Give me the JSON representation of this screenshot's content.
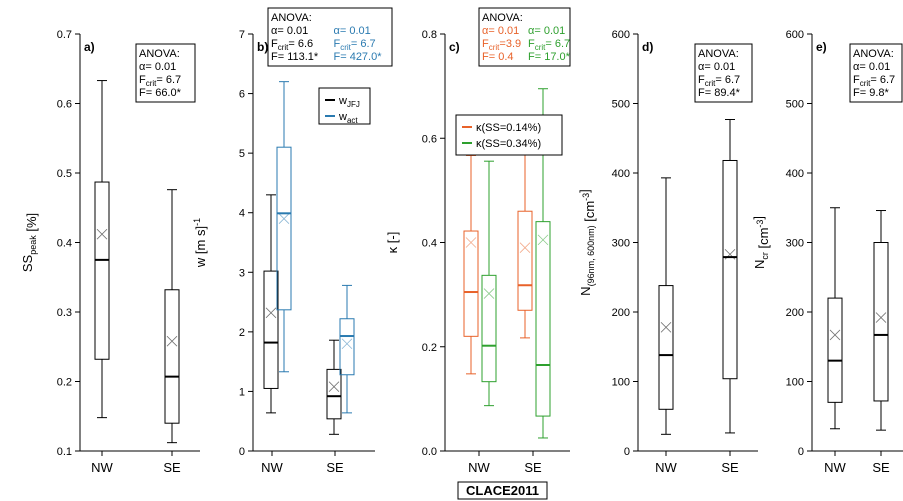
{
  "figure": {
    "campaign": "CLACE2011",
    "colors": {
      "black": "#000000",
      "blue": "#2a7ab0",
      "orange": "#e8622a",
      "green": "#2ea02e"
    }
  },
  "chart_data": [
    {
      "type": "box",
      "panel_label": "a)",
      "title": "",
      "xlabel": "",
      "ylabel": "SS",
      "ylabel_sub": "peak",
      "ylabel_unit": " [%]",
      "ylim": [
        0.1,
        0.7
      ],
      "yticks": [
        0.1,
        0.2,
        0.3,
        0.4,
        0.5,
        0.6,
        0.7
      ],
      "categories": [
        "NW",
        "SE"
      ],
      "boxes": [
        {
          "category": "NW",
          "color": "black",
          "min": 0.148,
          "q1": 0.232,
          "median": 0.375,
          "q3": 0.487,
          "max": 0.633,
          "mean": 0.412
        },
        {
          "category": "SE",
          "color": "black",
          "min": 0.112,
          "q1": 0.14,
          "median": 0.207,
          "q3": 0.332,
          "max": 0.476,
          "mean": 0.258
        }
      ],
      "anova": {
        "header": "ANOVA:",
        "lines": [
          [
            {
              "text": "α= 0.01",
              "color": "black"
            }
          ],
          [
            {
              "text": "F",
              "sub": "crit",
              "post": "= 6.7",
              "color": "black"
            }
          ],
          [
            {
              "text": "F= 66.0*",
              "color": "black"
            }
          ]
        ]
      }
    },
    {
      "type": "box",
      "panel_label": "b)",
      "title": "",
      "xlabel": "",
      "ylabel": "w [m s",
      "ylabel_sup": "-1",
      "ylabel_unit": "]",
      "ylim": [
        0,
        7
      ],
      "yticks": [
        0,
        1,
        2,
        3,
        4,
        5,
        6,
        7
      ],
      "categories": [
        "NW",
        "SE"
      ],
      "series": [
        {
          "name": "w",
          "sub": "JFJ",
          "color": "black"
        },
        {
          "name": "w",
          "sub": "act",
          "color": "blue"
        }
      ],
      "boxes": [
        {
          "category": "NW",
          "series": 0,
          "color": "black",
          "min": 0.64,
          "q1": 1.05,
          "median": 1.82,
          "q3": 3.02,
          "max": 4.3,
          "mean": 2.32
        },
        {
          "category": "NW",
          "series": 1,
          "color": "blue",
          "min": 1.33,
          "q1": 2.37,
          "median": 3.99,
          "q3": 5.1,
          "max": 6.2,
          "mean": 3.9
        },
        {
          "category": "SE",
          "series": 0,
          "color": "black",
          "min": 0.28,
          "q1": 0.54,
          "median": 0.92,
          "q3": 1.37,
          "max": 1.86,
          "mean": 1.08
        },
        {
          "category": "SE",
          "series": 1,
          "color": "blue",
          "min": 0.64,
          "q1": 1.28,
          "median": 1.93,
          "q3": 2.22,
          "max": 2.78,
          "mean": 1.8
        }
      ],
      "anova": {
        "header": "ANOVA:",
        "lines": [
          [
            {
              "text": "α= 0.01",
              "color": "black"
            },
            {
              "text": "α= 0.01",
              "color": "blue"
            }
          ],
          [
            {
              "text": "F",
              "sub": "crit",
              "post": "= 6.6",
              "color": "black"
            },
            {
              "text": "F",
              "sub": "crit",
              "post": "= 6.7",
              "color": "blue"
            }
          ],
          [
            {
              "text": "F= 113.1*",
              "color": "black"
            },
            {
              "text": "F= 427.0*",
              "color": "blue"
            }
          ]
        ]
      }
    },
    {
      "type": "box",
      "panel_label": "c)",
      "title": "",
      "xlabel": "",
      "ylabel": "κ [-]",
      "ylim": [
        0,
        0.8
      ],
      "yticks": [
        0.0,
        0.2,
        0.4,
        0.6,
        0.8
      ],
      "categories": [
        "NW",
        "SE"
      ],
      "series": [
        {
          "name": "κ(SS=0.14%)",
          "color": "orange"
        },
        {
          "name": "κ(SS=0.34%)",
          "color": "green"
        }
      ],
      "boxes": [
        {
          "category": "NW",
          "series": 0,
          "color": "orange",
          "min": 0.148,
          "q1": 0.22,
          "median": 0.305,
          "q3": 0.422,
          "max": 0.567,
          "mean": 0.4
        },
        {
          "category": "NW",
          "series": 1,
          "color": "green",
          "min": 0.087,
          "q1": 0.133,
          "median": 0.202,
          "q3": 0.337,
          "max": 0.556,
          "mean": 0.302
        },
        {
          "category": "SE",
          "series": 0,
          "color": "orange",
          "min": 0.217,
          "q1": 0.27,
          "median": 0.318,
          "q3": 0.46,
          "max": 0.578,
          "mean": 0.39
        },
        {
          "category": "SE",
          "series": 1,
          "color": "green",
          "min": 0.025,
          "q1": 0.067,
          "median": 0.165,
          "q3": 0.44,
          "max": 0.695,
          "mean": 0.405
        }
      ],
      "anova": {
        "header": "ANOVA:",
        "lines": [
          [
            {
              "text": "α= 0.01",
              "color": "orange"
            },
            {
              "text": "α= 0.01",
              "color": "green"
            }
          ],
          [
            {
              "text": "F",
              "sub": "crit",
              "post": "=3.9",
              "color": "orange"
            },
            {
              "text": "F",
              "sub": "crit",
              "post": "= 6.7",
              "color": "green"
            }
          ],
          [
            {
              "text": "F= 0.4",
              "color": "orange"
            },
            {
              "text": "F= 17.0*",
              "color": "green"
            }
          ]
        ]
      }
    },
    {
      "type": "box",
      "panel_label": "d)",
      "title": "",
      "xlabel": "",
      "ylabel": "N",
      "ylabel_sub": "(96nm, 600nm)",
      "ylabel_unit": " [cm",
      "ylabel_sup": "-3",
      "ylabel_end": "]",
      "ylim": [
        0,
        600
      ],
      "yticks": [
        0,
        100,
        200,
        300,
        400,
        500,
        600
      ],
      "categories": [
        "NW",
        "SE"
      ],
      "boxes": [
        {
          "category": "NW",
          "color": "black",
          "min": 24,
          "q1": 60,
          "median": 138,
          "q3": 238,
          "max": 393,
          "mean": 178
        },
        {
          "category": "SE",
          "color": "black",
          "min": 26,
          "q1": 104,
          "median": 279,
          "q3": 418,
          "max": 477,
          "mean": 283
        }
      ],
      "anova": {
        "header": "ANOVA:",
        "lines": [
          [
            {
              "text": "α= 0.01",
              "color": "black"
            }
          ],
          [
            {
              "text": "F",
              "sub": "crit",
              "post": "= 6.7",
              "color": "black"
            }
          ],
          [
            {
              "text": "F= 89.4*",
              "color": "black"
            }
          ]
        ]
      }
    },
    {
      "type": "box",
      "panel_label": "e)",
      "title": "",
      "xlabel": "",
      "ylabel": "N",
      "ylabel_sub": "cr",
      "ylabel_unit": " [cm",
      "ylabel_sup": "-3",
      "ylabel_end": "]",
      "ylim": [
        0,
        600
      ],
      "yticks": [
        0,
        100,
        200,
        300,
        400,
        500,
        600
      ],
      "categories": [
        "NW",
        "SE"
      ],
      "boxes": [
        {
          "category": "NW",
          "color": "black",
          "min": 32,
          "q1": 70,
          "median": 130,
          "q3": 220,
          "max": 350,
          "mean": 167
        },
        {
          "category": "SE",
          "color": "black",
          "min": 30,
          "q1": 72,
          "median": 167,
          "q3": 300,
          "max": 346,
          "mean": 192
        }
      ],
      "anova": {
        "header": "ANOVA:",
        "lines": [
          [
            {
              "text": "α= 0.01",
              "color": "black"
            }
          ],
          [
            {
              "text": "F",
              "sub": "crit",
              "post": "= 6.7",
              "color": "black"
            }
          ],
          [
            {
              "text": "F= 9.8*",
              "color": "black"
            }
          ]
        ]
      }
    }
  ]
}
